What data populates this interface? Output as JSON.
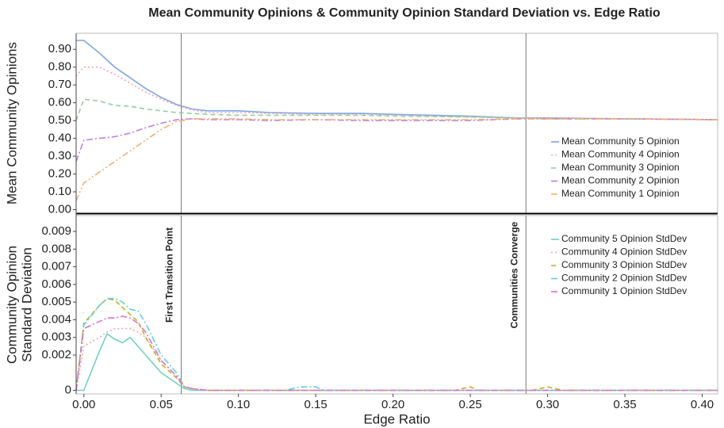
{
  "chart_data": [
    {
      "type": "line",
      "title": "Mean Community Opinions & Community Opinion Standard Deviation vs. Edge Ratio",
      "ylabel": "Mean Community Opinions",
      "x": [
        -0.005,
        0,
        0.01,
        0.02,
        0.03,
        0.04,
        0.05,
        0.06,
        0.07,
        0.08,
        0.1,
        0.12,
        0.15,
        0.18,
        0.2,
        0.25,
        0.28,
        0.3,
        0.35,
        0.41
      ],
      "series": [
        {
          "name": "Mean Community 5 Opinion",
          "color": "#7da7e0",
          "dash": "solid",
          "values": [
            0.95,
            0.95,
            0.88,
            0.8,
            0.74,
            0.68,
            0.63,
            0.59,
            0.565,
            0.555,
            0.555,
            0.545,
            0.54,
            0.54,
            0.535,
            0.525,
            0.515,
            0.515,
            0.51,
            0.505
          ]
        },
        {
          "name": "Mean Community 4 Opinion",
          "color": "#f4a0b0",
          "dash": "dotted",
          "values": [
            0.75,
            0.8,
            0.8,
            0.76,
            0.71,
            0.66,
            0.62,
            0.585,
            0.56,
            0.545,
            0.545,
            0.54,
            0.535,
            0.535,
            0.53,
            0.52,
            0.515,
            0.515,
            0.51,
            0.505
          ]
        },
        {
          "name": "Mean Community 3 Opinion",
          "color": "#8fd0a0",
          "dash": "dashed",
          "values": [
            0.5,
            0.62,
            0.61,
            0.585,
            0.58,
            0.565,
            0.555,
            0.545,
            0.54,
            0.535,
            0.53,
            0.53,
            0.53,
            0.53,
            0.525,
            0.52,
            0.515,
            0.51,
            0.51,
            0.505
          ]
        },
        {
          "name": "Mean Community 2 Opinion",
          "color": "#c080e0",
          "dash": "dashdot",
          "values": [
            0.27,
            0.39,
            0.4,
            0.41,
            0.43,
            0.46,
            0.485,
            0.505,
            0.51,
            0.505,
            0.505,
            0.5,
            0.505,
            0.5,
            0.5,
            0.5,
            0.51,
            0.51,
            0.51,
            0.505
          ]
        },
        {
          "name": "Mean Community 1 Opinion",
          "color": "#f0b070",
          "dash": "dashdotdot",
          "values": [
            0.05,
            0.15,
            0.21,
            0.27,
            0.33,
            0.39,
            0.45,
            0.495,
            0.51,
            0.51,
            0.51,
            0.505,
            0.505,
            0.505,
            0.505,
            0.505,
            0.51,
            0.51,
            0.51,
            0.505
          ]
        }
      ],
      "xlim": [
        -0.005,
        0.41
      ],
      "ylim": [
        -0.02,
        0.99
      ],
      "yticks": [
        {
          "value": 0,
          "label": "0.00"
        },
        {
          "value": 0.1,
          "label": "0.10"
        },
        {
          "value": 0.2,
          "label": "0.20"
        },
        {
          "value": 0.3,
          "label": "0.30"
        },
        {
          "value": 0.4,
          "label": "0.40"
        },
        {
          "value": 0.5,
          "label": "0.50"
        },
        {
          "value": 0.6,
          "label": "0.60"
        },
        {
          "value": 0.7,
          "label": "0.70"
        },
        {
          "value": 0.8,
          "label": "0.80"
        },
        {
          "value": 0.9,
          "label": "0.90"
        }
      ],
      "vlines": [
        0.063,
        0.286
      ],
      "legend": "lower right"
    },
    {
      "type": "line",
      "ylabel": [
        "Community Opinion",
        "Standard Deviation"
      ],
      "xlabel": "Edge Ratio",
      "x": [
        -0.005,
        0,
        0.01,
        0.015,
        0.02,
        0.025,
        0.03,
        0.035,
        0.04,
        0.05,
        0.06,
        0.065,
        0.07,
        0.08,
        0.09,
        0.13,
        0.14,
        0.15,
        0.155,
        0.24,
        0.25,
        0.255,
        0.29,
        0.3,
        0.31,
        0.41
      ],
      "series": [
        {
          "name": "Community 5 Opinion StdDev",
          "color": "#70d0c0",
          "dash": "solid",
          "values": [
            0,
            0,
            0.0022,
            0.0032,
            0.0029,
            0.0027,
            0.003,
            0.0025,
            0.002,
            0.001,
            0.0004,
            0.0001,
            0,
            0,
            0,
            0,
            0,
            0,
            0,
            0,
            0,
            0,
            0,
            0,
            0,
            0
          ]
        },
        {
          "name": "Community 4 Opinion StdDev",
          "color": "#f4a0c0",
          "dash": "dotted",
          "values": [
            0,
            0.0025,
            0.003,
            0.0033,
            0.0035,
            0.0035,
            0.0035,
            0.0033,
            0.003,
            0.0017,
            0.0008,
            0.0002,
            0.0001,
            0,
            0,
            0,
            0,
            0,
            0,
            0,
            0,
            0,
            0,
            0,
            0,
            0
          ]
        },
        {
          "name": "Community 3 Opinion StdDev",
          "color": "#c0b020",
          "dash": "dashed",
          "values": [
            0,
            0.0038,
            0.0048,
            0.0052,
            0.0051,
            0.0047,
            0.0043,
            0.0039,
            0.003,
            0.0015,
            0.0007,
            0.0002,
            0.0001,
            0,
            0,
            0,
            0,
            0,
            0,
            0,
            0.0002,
            0,
            0,
            0.0002,
            0,
            0
          ]
        },
        {
          "name": "Community 2 Opinion StdDev",
          "color": "#60d0e0",
          "dash": "dashdot",
          "values": [
            0,
            0.0037,
            0.0048,
            0.0052,
            0.0052,
            0.005,
            0.0046,
            0.0045,
            0.0038,
            0.002,
            0.001,
            0.0002,
            0.0001,
            0,
            0,
            0,
            0.0002,
            0.0002,
            0,
            0,
            0,
            0,
            0,
            0,
            0,
            0
          ]
        },
        {
          "name": "Community 1 Opinion StdDev",
          "color": "#e070d0",
          "dash": "dashdot",
          "values": [
            0,
            0.0035,
            0.0039,
            0.0041,
            0.0041,
            0.0042,
            0.0041,
            0.0038,
            0.0033,
            0.0017,
            0.0008,
            0.0002,
            0.0001,
            0,
            0,
            0,
            0,
            0,
            0,
            0,
            0,
            0,
            0,
            0,
            0,
            0
          ]
        }
      ],
      "xlim": [
        -0.005,
        0.41
      ],
      "ylim": [
        -0.0002,
        0.0099
      ],
      "xticks": [
        {
          "value": 0,
          "label": "0.00"
        },
        0.05,
        {
          "value": 0.1,
          "label": "0.10"
        },
        0.15,
        {
          "value": 0.2,
          "label": "0.20"
        },
        0.25,
        {
          "value": 0.3,
          "label": "0.30"
        },
        0.35,
        {
          "value": 0.4,
          "label": "0.40"
        }
      ],
      "yticks": [
        0,
        0.002,
        0.003,
        0.004,
        0.005,
        0.006,
        0.007,
        0.008,
        0.009
      ],
      "vlines": [
        {
          "x": 0.063,
          "label": "First Transition Point"
        },
        {
          "x": 0.286,
          "label": "Communities Converge"
        }
      ],
      "legend": "upper right"
    }
  ]
}
